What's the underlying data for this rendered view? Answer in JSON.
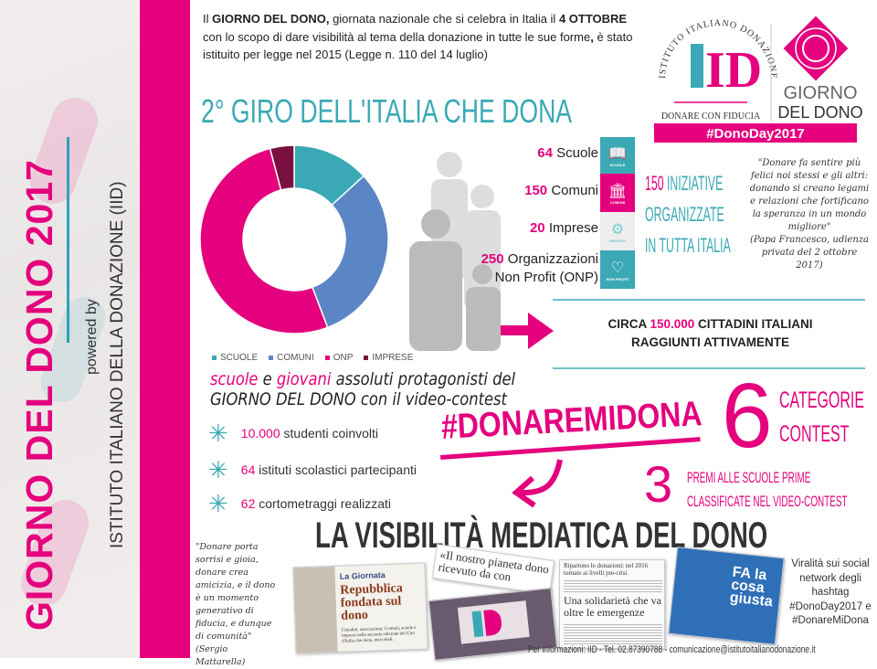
{
  "sidebar": {
    "title": "GIORNO DEL DONO 2017",
    "powered_by": "powered by",
    "institute": "ISTITUTO ITALIANO DELLA DONAZIONE (IID)"
  },
  "intro": {
    "p1": "Il ",
    "b1": "GIORNO DEL DONO,",
    "p2": " giornata nazionale che si celebra in Italia il ",
    "b2": "4 OTTOBRE",
    "p3": " con lo scopo di dare visibilità al tema della donazione in tutte le sue forme",
    "b3": ",",
    "p4": " è stato istituito per legge nel 2015 (Legge n. 110 del 14 luglio)"
  },
  "logo": {
    "arc_text": "ISTITUTO ITALIANO DONAZIONE",
    "monogram": "ID",
    "tagline": "DONARE CON FIDUCIA",
    "brand1": "GIORNO",
    "brand2": "DEL DONO",
    "hashtag": "#DonoDay2017"
  },
  "title": "2° GIRO DELL'ITALIA CHE DONA",
  "chart_data": {
    "type": "pie",
    "variant": "donut",
    "categories": [
      "SCUOLE",
      "COMUNI",
      "ONP",
      "IMPRESE"
    ],
    "values": [
      64,
      150,
      250,
      20
    ],
    "colors": [
      "#3aa9b5",
      "#5b86c5",
      "#e5007d",
      "#7a1040"
    ],
    "legend": "bottom"
  },
  "stats": [
    {
      "num": "64",
      "label": "Scuole",
      "icon": "book-icon",
      "icon_label": "SCUOLE",
      "color": "#3aa9b5"
    },
    {
      "num": "150",
      "label": "Comuni",
      "icon": "town-hall-icon",
      "icon_label": "COMUNI",
      "color": "#e5007d"
    },
    {
      "num": "20",
      "label": "Imprese",
      "icon": "gears-icon",
      "icon_label": "IMPRESE",
      "color": "#e6e6e6"
    },
    {
      "num": "250",
      "label": "Organizzazioni",
      "label2": "Non Profit (ONP)",
      "icon": "heart-icon",
      "icon_label": "NON PROFIT",
      "color": "#3aa9b5"
    }
  ],
  "initiatives": {
    "num": "150",
    "l1": " INIZIATIVE",
    "l2": "ORGANIZZATE",
    "l3": "IN TUTTA ITALIA"
  },
  "quote_papa": {
    "text": "\"Donare fa sentire più felici noi stessi e gli altri: donando si creano legami e relazioni che fortificano la speranza in un mondo migliore\"",
    "author": "(Papa Francesco, udienza privata del 2 ottobre 2017)"
  },
  "reach": {
    "pre": "CIRCA ",
    "num": "150.000",
    "post": " CITTADINI ITALIANI",
    "line2": "RAGGIUNTI ATTIVAMENTE"
  },
  "youth": {
    "w1": "scuole",
    "w2": " e ",
    "w3": "giovani",
    "w4": " assoluti protagonisti del",
    "line2": "GIORNO DEL DONO con il video-contest"
  },
  "bullets": [
    {
      "num": "10.000",
      "text": " studenti coinvolti"
    },
    {
      "num": "64",
      "text": " istituti scolastici partecipanti"
    },
    {
      "num": "62",
      "text": " cortometraggi realizzati"
    }
  ],
  "contest": {
    "hashtag": "#DONAREMIDONA",
    "num_categories": "6",
    "cat1": "CATEGORIE",
    "cat2": "CONTEST",
    "num_prizes": "3",
    "prize1": "PREMI ALLE SCUOLE PRIME",
    "prize2": "CLASSIFICATE NEL VIDEO-CONTEST"
  },
  "media": {
    "title": "LA VISIBILITÀ MEDIATICA DEL DONO",
    "quote": "\"Donare porta sorrisi e gioia, donare crea amicizia, e il dono è un momento generativo di fiducia, e dunque di comunità\"",
    "quote_author": "(Sergio Mattarella)",
    "press1_kicker": "La Giornata",
    "press1_head": "Repubblica fondata sul dono",
    "press1_body": "Cittadini, associazioni, Comuni, scuole e imprese nella seconda edizione del Giro d'Italia che dona, mercoledì.",
    "press2_head": "«Il nostro pianeta dono ricevuto da con",
    "press3_top": "Ripartono le donazioni: nel 2016 tornate ai livelli pre-crisi",
    "press3_head": "Una solidarietà che va oltre le emergenze",
    "press4_head": "FA la cosa giusta",
    "viral": "Viralità sui social network degli hashtag #DonoDay2017 e #DonareMiDona"
  },
  "footer": "Per informazioni: IID - Tel. 02.87390788 - comunicazione@istitutoitalianodonazione.it"
}
